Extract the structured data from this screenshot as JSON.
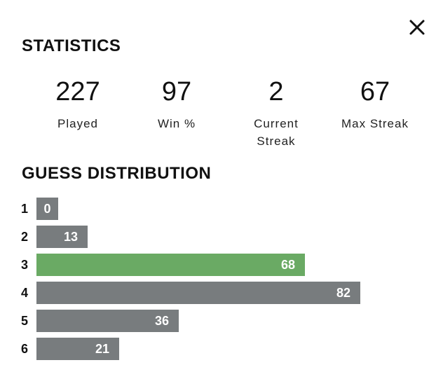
{
  "statistics": {
    "title": "STATISTICS",
    "items": [
      {
        "value": "227",
        "label": "Played"
      },
      {
        "value": "97",
        "label": "Win %"
      },
      {
        "value": "2",
        "label": "Current Streak"
      },
      {
        "value": "67",
        "label": "Max Streak"
      }
    ]
  },
  "distribution": {
    "title": "GUESS DISTRIBUTION",
    "max_value": 82,
    "rows": [
      {
        "guess": "1",
        "count": 0
      },
      {
        "guess": "2",
        "count": 13
      },
      {
        "guess": "3",
        "count": 68,
        "highlight": true
      },
      {
        "guess": "4",
        "count": 82
      },
      {
        "guess": "5",
        "count": 36
      },
      {
        "guess": "6",
        "count": 21
      }
    ]
  },
  "colors": {
    "bar_default": "#787c7e",
    "bar_highlight": "#6aaa64"
  },
  "icons": {
    "close": "close-icon"
  }
}
